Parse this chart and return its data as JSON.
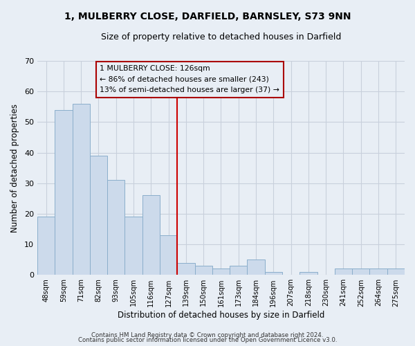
{
  "title": "1, MULBERRY CLOSE, DARFIELD, BARNSLEY, S73 9NN",
  "subtitle": "Size of property relative to detached houses in Darfield",
  "xlabel": "Distribution of detached houses by size in Darfield",
  "ylabel": "Number of detached properties",
  "categories": [
    "48sqm",
    "59sqm",
    "71sqm",
    "82sqm",
    "93sqm",
    "105sqm",
    "116sqm",
    "127sqm",
    "139sqm",
    "150sqm",
    "161sqm",
    "173sqm",
    "184sqm",
    "196sqm",
    "207sqm",
    "218sqm",
    "230sqm",
    "241sqm",
    "252sqm",
    "264sqm",
    "275sqm"
  ],
  "values": [
    19,
    54,
    56,
    39,
    31,
    19,
    26,
    13,
    4,
    3,
    2,
    3,
    5,
    1,
    0,
    1,
    0,
    2,
    2,
    2,
    2
  ],
  "bar_color": "#ccdaeb",
  "bar_edge_color": "#8aaecb",
  "marker_index": 7,
  "marker_line_color": "#cc0000",
  "annotation_line1": "1 MULBERRY CLOSE: 126sqm",
  "annotation_line2": "← 86% of detached houses are smaller (243)",
  "annotation_line3": "13% of semi-detached houses are larger (37) →",
  "annotation_box_edge_color": "#aa0000",
  "ylim": [
    0,
    70
  ],
  "yticks": [
    0,
    10,
    20,
    30,
    40,
    50,
    60,
    70
  ],
  "footer_line1": "Contains HM Land Registry data © Crown copyright and database right 2024.",
  "footer_line2": "Contains public sector information licensed under the Open Government Licence v3.0.",
  "background_color": "#e8eef5",
  "plot_bg_color": "#e8eef5",
  "grid_color": "#c8d0dc"
}
